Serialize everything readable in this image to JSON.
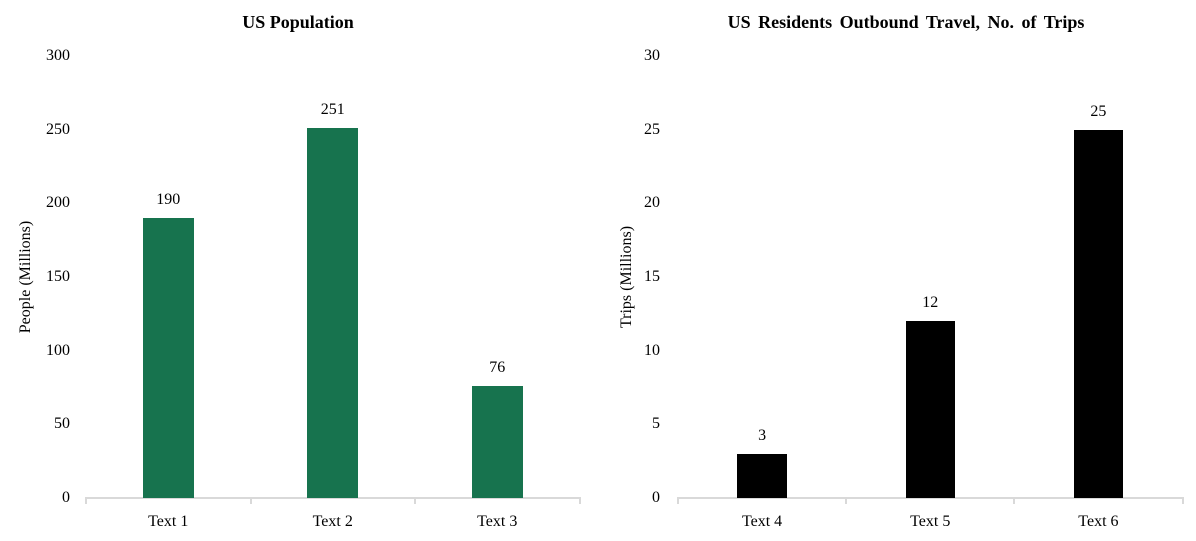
{
  "figure": {
    "background": "#ffffff",
    "text_color": "#000000"
  },
  "chart_data": [
    {
      "type": "bar",
      "title": "US Population",
      "xlabel": "",
      "ylabel": "People (Millions)",
      "categories": [
        "Text 1",
        "Text 2",
        "Text 3"
      ],
      "values": [
        190,
        251,
        76
      ],
      "data_labels": [
        "190",
        "251",
        "76"
      ],
      "yticks": [
        0,
        50,
        100,
        150,
        200,
        250,
        300
      ],
      "ylim": [
        0,
        300
      ],
      "ytick_interval": 50,
      "grid": false,
      "legend": false,
      "bar_color": "#17734E",
      "axis_line_color": "#D9D9D9"
    },
    {
      "type": "bar",
      "title": "US Residents Outbound Travel, No. of Trips",
      "xlabel": "",
      "ylabel": "Trips (Millions)",
      "categories": [
        "Text 4",
        "Text 5",
        "Text 6"
      ],
      "values": [
        3,
        12,
        25
      ],
      "data_labels": [
        "3",
        "12",
        "25"
      ],
      "yticks": [
        0,
        5,
        10,
        15,
        20,
        25,
        30
      ],
      "ylim": [
        0,
        30
      ],
      "ytick_interval": 5,
      "grid": false,
      "legend": false,
      "bar_color": "#000000",
      "axis_line_color": "#D9D9D9"
    }
  ]
}
